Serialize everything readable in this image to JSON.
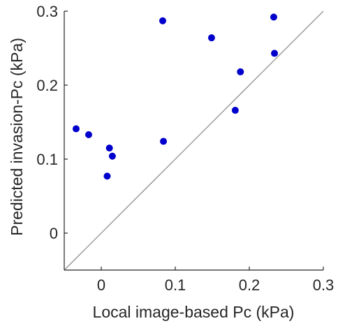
{
  "chart_data": {
    "type": "scatter",
    "title": "",
    "xlabel": "Local image-based Pc (kPa)",
    "ylabel": "Predicted invasion-Pc (kPa)",
    "xlim": [
      -0.05,
      0.3
    ],
    "ylim": [
      -0.05,
      0.3
    ],
    "xticks": [
      0,
      0.1,
      0.2,
      0.3
    ],
    "yticks": [
      0,
      0.1,
      0.2,
      0.3
    ],
    "xtick_labels": [
      "0",
      "0.1",
      "0.2",
      "0.3"
    ],
    "ytick_labels": [
      "0",
      "0.1",
      "0.2",
      "0.3"
    ],
    "grid": false,
    "reference_line": "y = x",
    "colors": {
      "points": "#0000cc",
      "reference_line": "#9a9a9a",
      "axes": "#262626"
    },
    "points": [
      {
        "x": -0.034,
        "y": 0.141
      },
      {
        "x": -0.017,
        "y": 0.133
      },
      {
        "x": 0.011,
        "y": 0.115
      },
      {
        "x": 0.015,
        "y": 0.104
      },
      {
        "x": 0.008,
        "y": 0.077
      },
      {
        "x": 0.083,
        "y": 0.287
      },
      {
        "x": 0.084,
        "y": 0.124
      },
      {
        "x": 0.149,
        "y": 0.264
      },
      {
        "x": 0.181,
        "y": 0.166
      },
      {
        "x": 0.188,
        "y": 0.218
      },
      {
        "x": 0.233,
        "y": 0.292
      },
      {
        "x": 0.234,
        "y": 0.243
      }
    ]
  }
}
